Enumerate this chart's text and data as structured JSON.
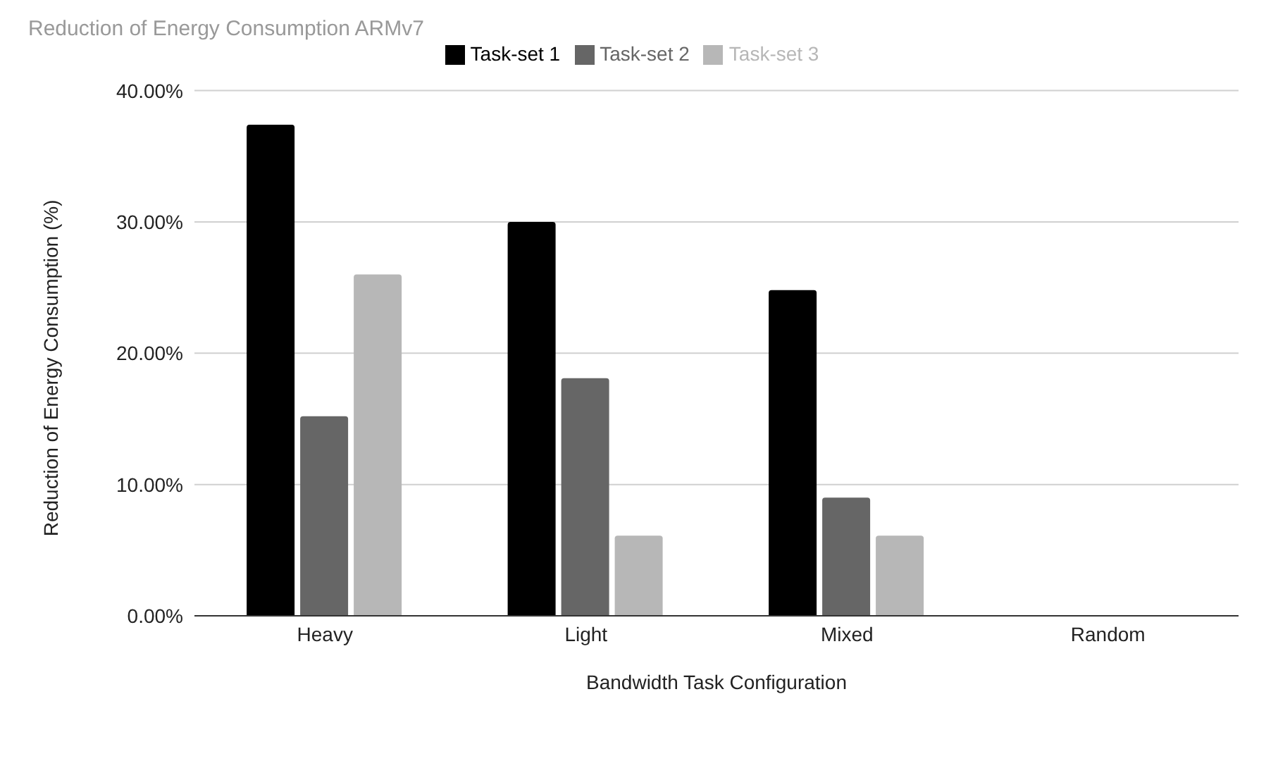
{
  "chart_data": {
    "type": "bar",
    "title": "Reduction of Energy Consumption ARMv7",
    "xlabel": "Bandwidth Task Configuration",
    "ylabel": "Reduction of Energy Consumption (%)",
    "categories": [
      "Heavy",
      "Light",
      "Mixed",
      "Random"
    ],
    "series": [
      {
        "name": "Task-set 1",
        "color": "#000000",
        "values": [
          37.4,
          30.0,
          24.8,
          0
        ]
      },
      {
        "name": "Task-set 2",
        "color": "#666666",
        "values": [
          15.2,
          18.1,
          9.0,
          0
        ]
      },
      {
        "name": "Task-set 3",
        "color": "#b7b7b7",
        "values": [
          26.0,
          6.1,
          6.1,
          0
        ]
      }
    ],
    "ylim": [
      0,
      40
    ],
    "yticks": [
      {
        "value": 0,
        "label": "0.00%"
      },
      {
        "value": 10,
        "label": "10.00%"
      },
      {
        "value": 20,
        "label": "20.00%"
      },
      {
        "value": 30,
        "label": "30.00%"
      },
      {
        "value": 40,
        "label": "40.00%"
      }
    ],
    "grid": "y",
    "legend": "top"
  }
}
